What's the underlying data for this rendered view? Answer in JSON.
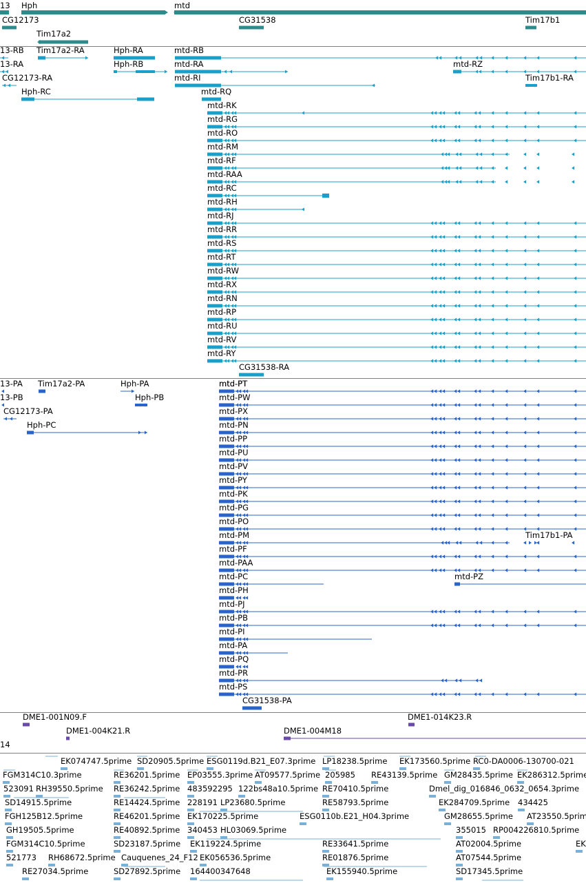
{
  "colors": {
    "gene": "#2e8b8b",
    "mrna": "#1aa0c8",
    "protein": "#2a64c8",
    "bac": "#6a4aa8",
    "est": "#7ab0d8"
  },
  "tracks": {
    "genes": {
      "labels": [
        "13",
        "Hph",
        "mtd",
        "CG12173",
        "CG31538",
        "Tim17b1",
        "Tim17a2"
      ]
    },
    "transcripts": {
      "labels": [
        "13-RB",
        "Tim17a2-RA",
        "Hph-RA",
        "mtd-RB",
        "13-RA",
        "Hph-RB",
        "mtd-RA",
        "mtd-RZ",
        "CG12173-RA",
        "mtd-RI",
        "Tim17b1-RA",
        "Hph-RC",
        "mtd-RQ",
        "mtd-RK",
        "mtd-RG",
        "mtd-RO",
        "mtd-RM",
        "mtd-RF",
        "mtd-RAA",
        "mtd-RC",
        "mtd-RH",
        "mtd-RJ",
        "mtd-RR",
        "mtd-RS",
        "mtd-RT",
        "mtd-RW",
        "mtd-RX",
        "mtd-RN",
        "mtd-RP",
        "mtd-RU",
        "mtd-RV",
        "mtd-RY",
        "CG31538-RA"
      ]
    },
    "proteins": {
      "labels": [
        "13-PA",
        "Tim17a2-PA",
        "Hph-PA",
        "mtd-PT",
        "13-PB",
        "Hph-PB",
        "mtd-PW",
        "CG12173-PA",
        "mtd-PX",
        "Hph-PC",
        "mtd-PN",
        "mtd-PP",
        "mtd-PU",
        "mtd-PV",
        "mtd-PY",
        "mtd-PK",
        "mtd-PG",
        "mtd-PO",
        "mtd-PM",
        "Tim17b1-PA",
        "mtd-PF",
        "mtd-PAA",
        "mtd-PC",
        "mtd-PZ",
        "mtd-PH",
        "mtd-PJ",
        "mtd-PB",
        "mtd-PI",
        "mtd-PA",
        "mtd-PQ",
        "mtd-PR",
        "mtd-PS",
        "CG31538-PA"
      ]
    },
    "bacs": {
      "labels": [
        "DME1-001N09.F",
        "DME1-014K23.R",
        "DME1-004K21.R",
        "14",
        "DME1-004M18"
      ]
    },
    "ests": {
      "labels": [
        "EK074747.5prime",
        "SD20905.5prime",
        "ESG0119d.B21_E07.3prime",
        "LP18238.5prime",
        "EK173560.5prime",
        "RC0-DA0006-130700-021",
        "FGM314C10.3prime",
        "RE36201.5prime",
        "EP03555.3prime",
        "AT09577.5prime",
        "205985",
        "RE43139.5prime",
        "GM28435.5prime",
        "EK286312.5prime",
        "523091",
        "RH39550.5prime",
        "RE36242.5prime",
        "483592295",
        "122bs48a10.5prime",
        "RE70410.5prime",
        "Dmel_dig_016846_0632_0654.3prime",
        "SD14915.5prime",
        "RE14424.5prime",
        "228191",
        "LP23680.5prime",
        "RE58793.5prime",
        "EK284709.5prime",
        "434425",
        "FGH125B12.5prime",
        "RE46201.5prime",
        "EK170225.5prime",
        "ESG0110b.E21_H04.3prime",
        "GM28655.5prime",
        "AT23550.5prime",
        "GH19505.5prime",
        "RE40892.5prime",
        "340453",
        "HL03069.5prime",
        "355015",
        "RP004226810.5prime",
        "FGM314C10.5prime",
        "SD23187.5prime",
        "EK119224.5prime",
        "RE33641.5prime",
        "AT02004.5prime",
        "EK",
        "521773",
        "RH68672.5prime",
        "Cauquenes_24_F12",
        "EK056536.5prime",
        "RE01876.5prime",
        "AT07544.5prime",
        "RE27034.5prime",
        "SD27892.5prime",
        "164400347648",
        "EK155940.5prime",
        "SD17345.5prime"
      ]
    }
  }
}
